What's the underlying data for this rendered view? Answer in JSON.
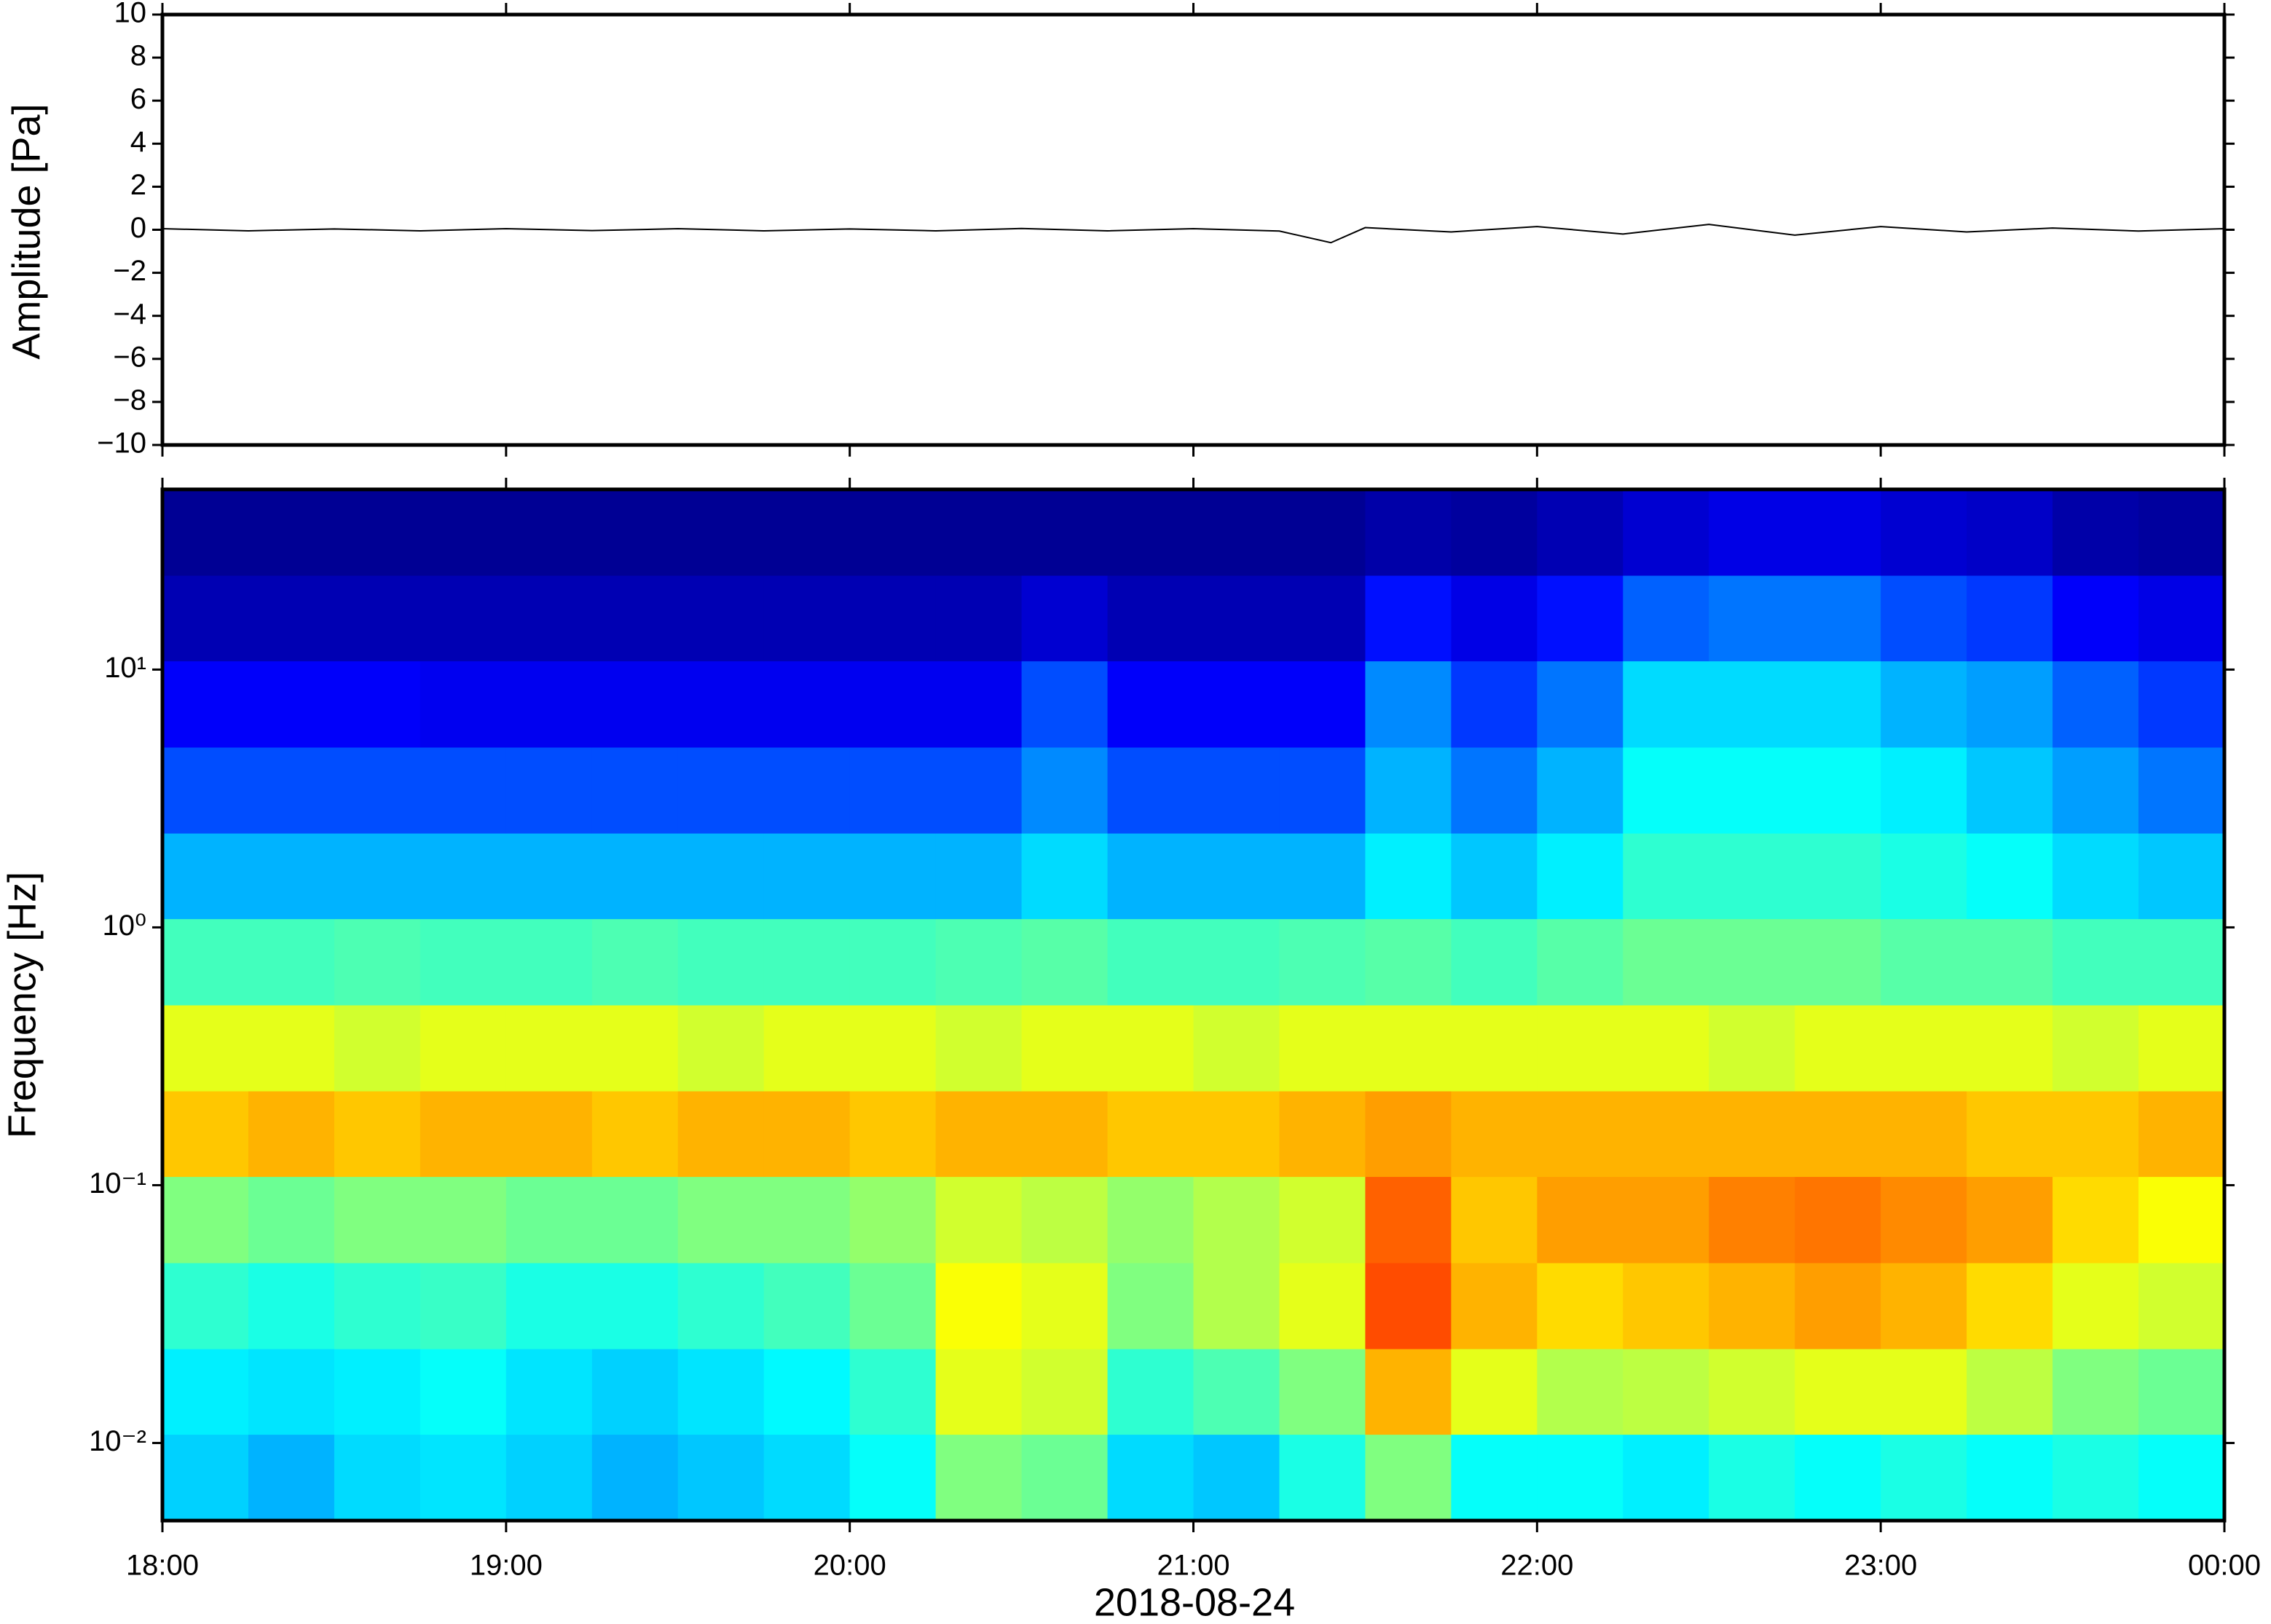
{
  "chart_data": [
    {
      "type": "line",
      "ylabel": "Amplitude [Pa]",
      "x": [
        18,
        18.25,
        18.5,
        18.75,
        19,
        19.25,
        19.5,
        19.75,
        20,
        20.25,
        20.5,
        20.75,
        21,
        21.25,
        21.4,
        21.5,
        21.75,
        22,
        22.25,
        22.5,
        22.75,
        23,
        23.25,
        23.5,
        23.75,
        24
      ],
      "series": [
        {
          "name": "Amplitude",
          "color": "#000000",
          "values": [
            0.05,
            -0.05,
            0.04,
            -0.05,
            0.05,
            -0.04,
            0.05,
            -0.05,
            0.04,
            -0.05,
            0.06,
            -0.05,
            0.05,
            -0.06,
            -0.6,
            0.1,
            -0.1,
            0.15,
            -0.2,
            0.25,
            -0.25,
            0.15,
            -0.1,
            0.08,
            -0.06,
            0.05
          ]
        }
      ],
      "xlim": [
        18,
        24
      ],
      "xticks": [
        18,
        19,
        20,
        21,
        22,
        23,
        24
      ],
      "ylim": [
        -10,
        10
      ],
      "yticks": [
        {
          "value": -10,
          "label": "−10"
        },
        {
          "value": -8,
          "label": "−8"
        },
        {
          "value": -6,
          "label": "−6"
        },
        {
          "value": -4,
          "label": "−4"
        },
        {
          "value": -2,
          "label": "−2"
        },
        0,
        2,
        4,
        6,
        8,
        10
      ]
    },
    {
      "type": "heatmap",
      "ylabel": "Frequency [Hz]",
      "xlabel": "2018-08-24",
      "colormap": "jet",
      "log_y": true,
      "x_bins": [
        18,
        18.25,
        18.5,
        18.75,
        19,
        19.25,
        19.5,
        19.75,
        20,
        20.25,
        20.5,
        20.75,
        21,
        21.25,
        21.5,
        21.75,
        22,
        22.25,
        22.5,
        22.75,
        23,
        23.25,
        23.5,
        23.75,
        24
      ],
      "y_bins": [
        0.005,
        0.0108,
        0.0232,
        0.05,
        0.108,
        0.232,
        0.5,
        1.08,
        2.32,
        5,
        10.8,
        23.2,
        50
      ],
      "values": [
        [
          0.33,
          0.3,
          0.34,
          0.35,
          0.33,
          0.3,
          0.32,
          0.34,
          0.38,
          0.5,
          0.48,
          0.34,
          0.32,
          0.4,
          0.5,
          0.38,
          0.38,
          0.36,
          0.4,
          0.38,
          0.4,
          0.38,
          0.4,
          0.38
        ],
        [
          0.36,
          0.35,
          0.36,
          0.38,
          0.35,
          0.33,
          0.35,
          0.37,
          0.42,
          0.6,
          0.58,
          0.42,
          0.45,
          0.5,
          0.7,
          0.6,
          0.55,
          0.56,
          0.58,
          0.6,
          0.6,
          0.56,
          0.5,
          0.48
        ],
        [
          0.42,
          0.4,
          0.42,
          0.43,
          0.4,
          0.4,
          0.42,
          0.44,
          0.48,
          0.62,
          0.6,
          0.5,
          0.55,
          0.6,
          0.8,
          0.7,
          0.66,
          0.68,
          0.7,
          0.72,
          0.7,
          0.66,
          0.6,
          0.58
        ],
        [
          0.5,
          0.48,
          0.5,
          0.5,
          0.48,
          0.48,
          0.5,
          0.5,
          0.52,
          0.58,
          0.56,
          0.52,
          0.55,
          0.58,
          0.78,
          0.68,
          0.72,
          0.72,
          0.75,
          0.76,
          0.74,
          0.72,
          0.66,
          0.62
        ],
        [
          0.68,
          0.7,
          0.68,
          0.7,
          0.7,
          0.68,
          0.7,
          0.7,
          0.68,
          0.7,
          0.7,
          0.68,
          0.68,
          0.7,
          0.72,
          0.7,
          0.7,
          0.7,
          0.7,
          0.7,
          0.7,
          0.68,
          0.68,
          0.7
        ],
        [
          0.6,
          0.6,
          0.58,
          0.6,
          0.6,
          0.6,
          0.58,
          0.6,
          0.6,
          0.58,
          0.6,
          0.6,
          0.58,
          0.6,
          0.6,
          0.6,
          0.6,
          0.6,
          0.58,
          0.6,
          0.6,
          0.6,
          0.58,
          0.6
        ],
        [
          0.44,
          0.44,
          0.45,
          0.44,
          0.44,
          0.45,
          0.44,
          0.44,
          0.44,
          0.45,
          0.46,
          0.44,
          0.44,
          0.45,
          0.46,
          0.44,
          0.46,
          0.48,
          0.48,
          0.48,
          0.46,
          0.46,
          0.44,
          0.44
        ],
        [
          0.3,
          0.3,
          0.3,
          0.3,
          0.3,
          0.3,
          0.3,
          0.3,
          0.3,
          0.3,
          0.34,
          0.3,
          0.3,
          0.3,
          0.36,
          0.32,
          0.36,
          0.42,
          0.42,
          0.42,
          0.4,
          0.38,
          0.34,
          0.32
        ],
        [
          0.2,
          0.2,
          0.2,
          0.2,
          0.2,
          0.2,
          0.2,
          0.2,
          0.2,
          0.2,
          0.26,
          0.2,
          0.2,
          0.2,
          0.3,
          0.24,
          0.3,
          0.38,
          0.38,
          0.38,
          0.36,
          0.32,
          0.28,
          0.24
        ],
        [
          0.12,
          0.12,
          0.12,
          0.11,
          0.11,
          0.11,
          0.11,
          0.11,
          0.11,
          0.11,
          0.2,
          0.12,
          0.12,
          0.12,
          0.26,
          0.18,
          0.24,
          0.34,
          0.34,
          0.34,
          0.3,
          0.28,
          0.22,
          0.18
        ],
        [
          0.05,
          0.05,
          0.05,
          0.05,
          0.05,
          0.05,
          0.05,
          0.05,
          0.05,
          0.05,
          0.08,
          0.05,
          0.05,
          0.05,
          0.14,
          0.1,
          0.14,
          0.22,
          0.24,
          0.24,
          0.2,
          0.18,
          0.12,
          0.1
        ],
        [
          0.02,
          0.02,
          0.02,
          0.02,
          0.02,
          0.02,
          0.02,
          0.02,
          0.02,
          0.02,
          0.02,
          0.02,
          0.02,
          0.02,
          0.04,
          0.03,
          0.05,
          0.08,
          0.1,
          0.1,
          0.08,
          0.07,
          0.04,
          0.03
        ]
      ],
      "xlim": [
        18,
        24
      ],
      "xticks": [
        {
          "value": 18,
          "label": "18:00"
        },
        {
          "value": 19,
          "label": "19:00"
        },
        {
          "value": 20,
          "label": "20:00"
        },
        {
          "value": 21,
          "label": "21:00"
        },
        {
          "value": 22,
          "label": "22:00"
        },
        {
          "value": 23,
          "label": "23:00"
        },
        {
          "value": 24,
          "label": "00:00"
        }
      ],
      "ylim": [
        0.005,
        50
      ],
      "yticks": [
        {
          "value": 0.01,
          "label": "10⁻²"
        },
        {
          "value": 0.1,
          "label": "10⁻¹"
        },
        {
          "value": 1,
          "label": "10⁰"
        },
        {
          "value": 10,
          "label": "10¹"
        }
      ]
    }
  ]
}
